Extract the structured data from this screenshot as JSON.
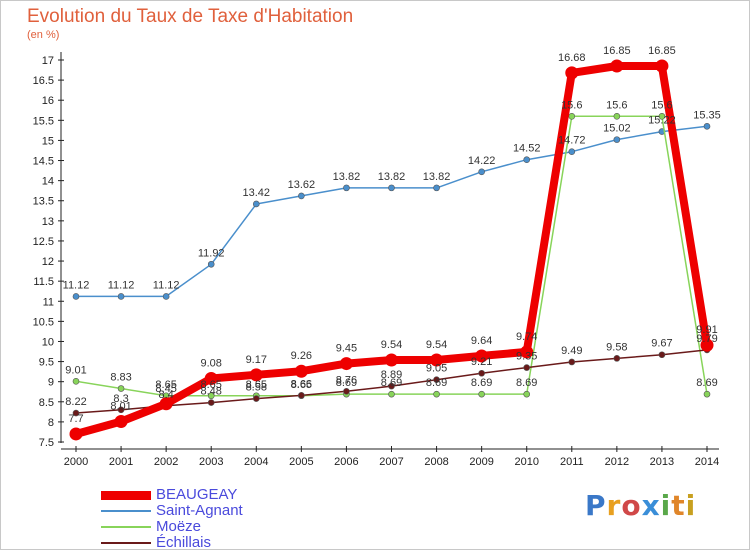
{
  "title": "Evolution du Taux de Taxe d'Habitation",
  "subtitle": "(en %)",
  "logo_text": "Proxiti",
  "chart_data": {
    "type": "line",
    "x": [
      "2000",
      "2001",
      "2002",
      "2003",
      "2004",
      "2005",
      "2006",
      "2007",
      "2008",
      "2009",
      "2010",
      "2011",
      "2012",
      "2013",
      "2014"
    ],
    "ylim": [
      7.5,
      17
    ],
    "yticks": [
      "7.5",
      "8",
      "8.5",
      "9",
      "9.5",
      "10",
      "10.5",
      "11",
      "11.5",
      "12",
      "12.5",
      "13",
      "13.5",
      "14",
      "14.5",
      "15",
      "15.5",
      "16",
      "16.5",
      "17"
    ],
    "grid": false,
    "legend_position": "bottom-left",
    "series": [
      {
        "name": "BEAUGEAY",
        "color": "#ee0000",
        "thick": true,
        "values": [
          7.7,
          8.01,
          8.45,
          9.08,
          9.17,
          9.26,
          9.45,
          9.54,
          9.54,
          9.64,
          9.74,
          16.68,
          16.85,
          16.85,
          9.91
        ]
      },
      {
        "name": "Saint-Agnant",
        "color": "#4a8fcc",
        "thick": false,
        "values": [
          11.12,
          11.12,
          11.12,
          11.92,
          13.42,
          13.62,
          13.82,
          13.82,
          13.82,
          14.22,
          14.52,
          14.72,
          15.02,
          15.22,
          15.35
        ]
      },
      {
        "name": "Moëze",
        "color": "#88d45a",
        "thick": false,
        "values": [
          9.01,
          8.83,
          8.65,
          8.65,
          8.65,
          8.65,
          8.69,
          8.69,
          8.69,
          8.69,
          8.69,
          15.6,
          15.6,
          15.6,
          8.69
        ]
      },
      {
        "name": "Échillais",
        "color": "#6a1a1a",
        "thick": false,
        "values": [
          8.22,
          8.3,
          8.4,
          8.48,
          8.58,
          8.66,
          8.76,
          8.89,
          9.05,
          9.21,
          9.35,
          9.49,
          9.58,
          9.67,
          9.79
        ]
      }
    ]
  }
}
